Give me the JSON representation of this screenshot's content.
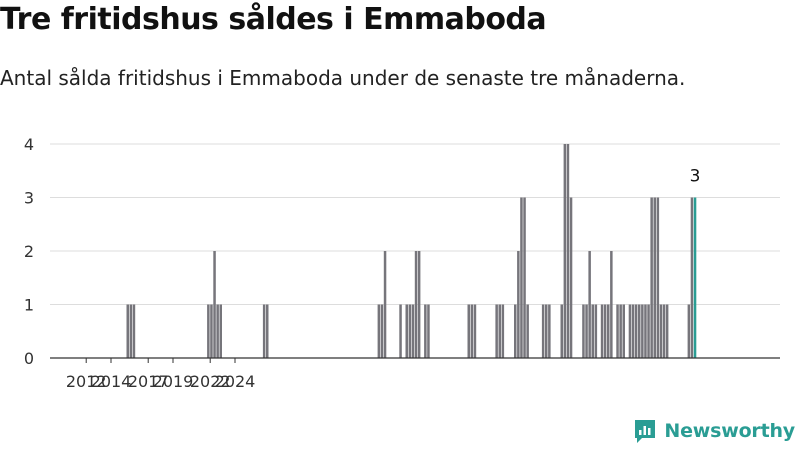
{
  "title": "Tre fritidshus såldes i Emmaboda",
  "subtitle": "Antal sålda fritidshus i Emmaboda under de senaste tre månaderna.",
  "brand": "Newsworthy",
  "colors": {
    "bar": "#76757b",
    "highlight": "#2a9d94",
    "grid": "#dddddd",
    "axis": "#333333",
    "brand": "#2a9d94"
  },
  "chart_data": {
    "type": "bar",
    "title": "",
    "xlabel": "",
    "ylabel": "",
    "ylim": [
      0,
      4
    ],
    "yticks": [
      0,
      1,
      2,
      3,
      4
    ],
    "xticks": [
      "2012",
      "2014",
      "2017",
      "2019",
      "2022",
      "2024"
    ],
    "grid": true,
    "legend": "none",
    "highlight_label": "3",
    "x_unit": "quarter index starting 2011 Q3",
    "values": [
      0,
      0,
      0,
      0,
      0,
      0,
      0,
      0,
      0,
      0,
      0,
      0,
      0,
      0,
      0,
      1,
      1,
      1,
      0,
      0,
      0,
      0,
      0,
      0,
      0,
      0,
      0,
      0,
      0,
      0,
      0,
      0,
      0,
      0,
      0,
      0,
      0,
      0,
      0,
      0,
      0,
      1,
      1,
      2,
      1,
      1,
      0,
      0,
      0,
      0,
      0,
      0,
      0,
      0,
      0,
      0,
      0,
      0,
      0,
      1,
      1,
      0,
      0,
      0,
      0,
      0,
      0,
      0,
      0,
      0,
      0,
      0,
      0,
      0,
      0,
      0,
      0,
      0,
      0,
      0,
      0,
      0,
      0,
      0,
      0,
      0,
      0,
      0,
      0,
      0,
      0,
      0,
      0,
      0,
      0,
      0,
      1,
      1,
      2,
      0,
      0,
      0,
      0,
      1,
      0,
      1,
      1,
      1,
      2,
      2,
      0,
      1,
      1,
      0,
      0,
      0,
      0,
      0,
      0,
      0,
      0,
      0,
      0,
      0,
      0,
      1,
      1,
      1,
      0,
      0,
      0,
      0,
      0,
      0,
      1,
      1,
      1,
      0,
      0,
      0,
      1,
      2,
      3,
      3,
      1,
      0,
      0,
      0,
      0,
      1,
      1,
      1,
      0,
      0,
      0,
      1,
      4,
      4,
      3,
      0,
      0,
      0,
      1,
      1,
      2,
      1,
      1,
      0,
      1,
      1,
      1,
      2,
      0,
      1,
      1,
      1,
      0,
      1,
      1,
      1,
      1,
      1,
      1,
      1,
      3,
      3,
      3,
      1,
      1,
      1,
      0,
      0,
      0,
      0,
      0,
      0,
      1,
      3,
      3
    ]
  }
}
